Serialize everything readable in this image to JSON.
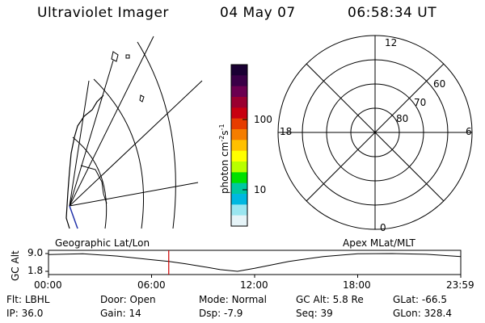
{
  "header": {
    "instrument": "Ultraviolet Imager",
    "date": "04 May 07",
    "time": "06:58:34 UT"
  },
  "colorbar": {
    "label": "photon cm",
    "unit_superscript_1": "-2",
    "unit_middle": "s",
    "unit_superscript_2": "-1",
    "tick_100": "100",
    "tick_10": "10",
    "colors": [
      "#1a0033",
      "#3a0047",
      "#6b0050",
      "#9a0030",
      "#c80010",
      "#e63c00",
      "#f47d00",
      "#ffc000",
      "#ffff00",
      "#b8ff00",
      "#00e000",
      "#00c8a0",
      "#00b8e0",
      "#9ae6f0",
      "#e6f4f8"
    ]
  },
  "polar_plot": {
    "mlt_labels": {
      "top": "12",
      "right": "6",
      "bottom": "0",
      "left": "18"
    },
    "lat_labels": [
      "60",
      "70",
      "80"
    ]
  },
  "map_labels": {
    "left": "Geographic Lat/Lon",
    "right": "Apex MLat/MLT"
  },
  "altitude_plot": {
    "ylabel": "GC Alt",
    "y_top": "9.0",
    "y_bottom": "1.8",
    "x_ticks": [
      "00:00",
      "06:00",
      "12:00",
      "18:00",
      "23:59"
    ]
  },
  "chart_data": {
    "type": "line",
    "title": "",
    "xlabel": "",
    "ylabel": "GC Alt",
    "xlim": [
      0,
      24
    ],
    "ylim": [
      1.8,
      9.0
    ],
    "x": [
      0,
      2,
      4,
      6,
      7,
      8,
      9,
      10,
      11,
      12,
      14,
      16,
      18,
      20,
      22,
      24
    ],
    "series": [
      {
        "values": [
          8.6,
          8.9,
          8.0,
          6.5,
          5.8,
          4.8,
          3.7,
          2.5,
          1.8,
          3.0,
          5.8,
          7.8,
          8.9,
          9.0,
          8.7,
          7.8
        ]
      }
    ],
    "current_time_marker": 7.0,
    "current_marker_color": "#cc0000"
  },
  "footer": {
    "row1": [
      {
        "label": "Flt:",
        "value": "LBHL"
      },
      {
        "label": "Door:",
        "value": "Open"
      },
      {
        "label": "Mode:",
        "value": "Normal"
      },
      {
        "label": "GC Alt:",
        "value": "5.8 Re"
      },
      {
        "label": "GLat:",
        "value": "-66.5"
      }
    ],
    "row2": [
      {
        "label": "IP:",
        "value": "36.0"
      },
      {
        "label": "Gain:",
        "value": "14"
      },
      {
        "label": "Dsp:",
        "value": "-7.9"
      },
      {
        "label": "Seq:",
        "value": "39"
      },
      {
        "label": "GLon:",
        "value": "328.4"
      }
    ]
  }
}
